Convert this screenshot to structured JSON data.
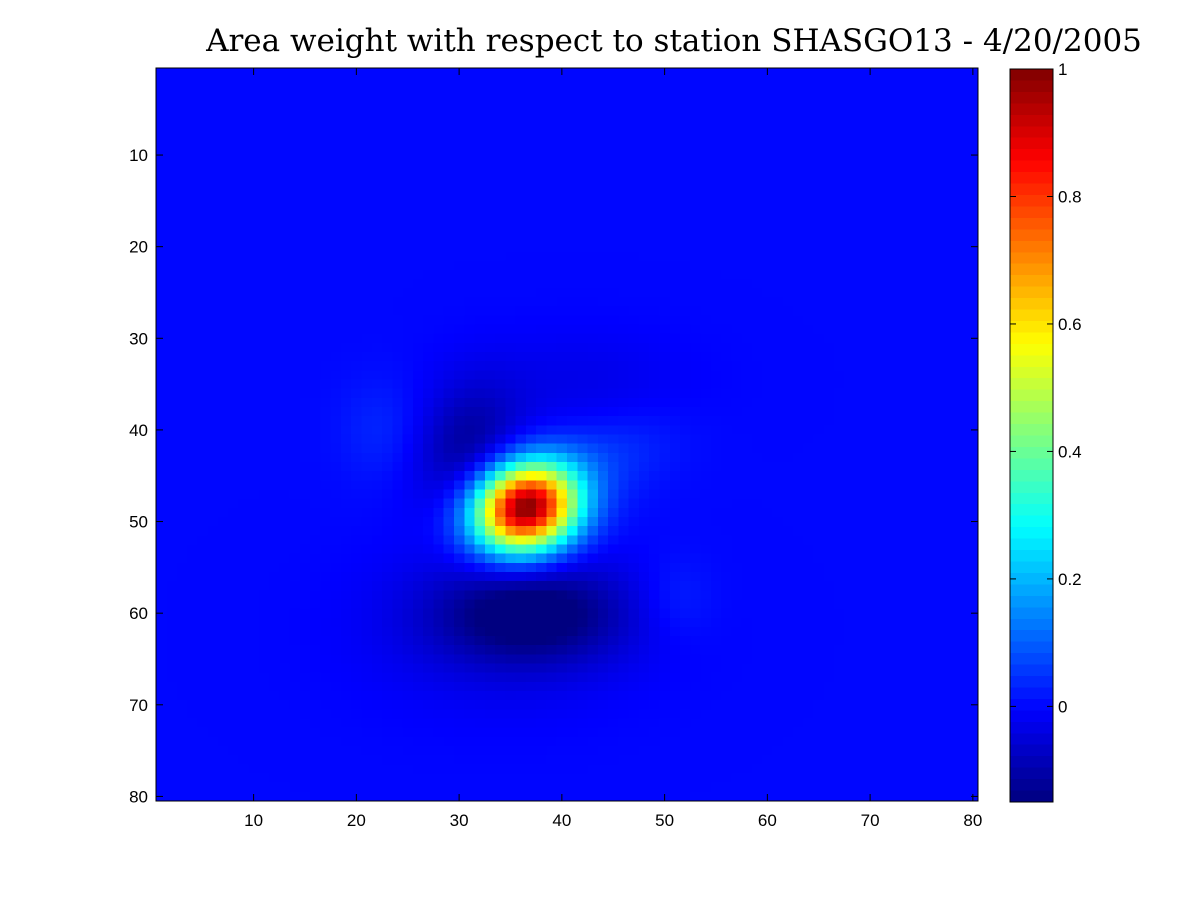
{
  "chart_data": {
    "type": "heatmap",
    "title": "Area weight with respect to station SHASGO13 - 4/20/2005",
    "xlabel": "",
    "ylabel": "",
    "grid_size": [
      80,
      80
    ],
    "xlim": [
      0.5,
      80.5
    ],
    "ylim": [
      0.5,
      80.5
    ],
    "y_direction": "reversed",
    "x_ticks": [
      10,
      20,
      30,
      40,
      50,
      60,
      70,
      80
    ],
    "y_ticks": [
      10,
      20,
      30,
      40,
      50,
      60,
      70,
      80
    ],
    "background_value": 0.0,
    "colormap": "jet",
    "colorbar": {
      "range": [
        -0.15,
        1.0
      ],
      "ticks": [
        0,
        0.2,
        0.4,
        0.6,
        0.8,
        1
      ],
      "tick_labels": [
        "0",
        "0.2",
        "0.4",
        "0.6",
        "0.8",
        "1"
      ]
    },
    "features": [
      {
        "label": "main peak",
        "x": 36.5,
        "y": 48.5,
        "amplitude": 1.0,
        "sigma_x": 3.6,
        "sigma_y": 3.2,
        "rotation_deg": -35
      },
      {
        "label": "negative lobe (upper)",
        "x": 31,
        "y": 42,
        "amplitude": -0.12,
        "sigma_x": 3.5,
        "sigma_y": 5.0,
        "rotation_deg": 10
      },
      {
        "label": "negative lobe (lower)",
        "x": 37,
        "y": 60,
        "amplitude": -0.16,
        "sigma_x": 6.5,
        "sigma_y": 3.8,
        "rotation_deg": 0
      },
      {
        "label": "negative shelf (lower left)",
        "x": 34,
        "y": 62,
        "amplitude": -0.04,
        "sigma_x": 9,
        "sigma_y": 6,
        "rotation_deg": 0
      },
      {
        "label": "negative shelf (upper)",
        "x": 42,
        "y": 35,
        "amplitude": -0.03,
        "sigma_x": 7,
        "sigma_y": 4,
        "rotation_deg": 0
      },
      {
        "label": "positive side lobe (left)",
        "x": 22.5,
        "y": 40,
        "amplitude": 0.035,
        "sigma_x": 3.0,
        "sigma_y": 4.0,
        "rotation_deg": 0
      },
      {
        "label": "positive side lobe (right)",
        "x": 51,
        "y": 58.5,
        "amplitude": 0.035,
        "sigma_x": 2.6,
        "sigma_y": 3.2,
        "rotation_deg": 0
      },
      {
        "label": "positive halo (upper right)",
        "x": 44,
        "y": 43,
        "amplitude": 0.05,
        "sigma_x": 5,
        "sigma_y": 3,
        "rotation_deg": -20
      }
    ]
  }
}
